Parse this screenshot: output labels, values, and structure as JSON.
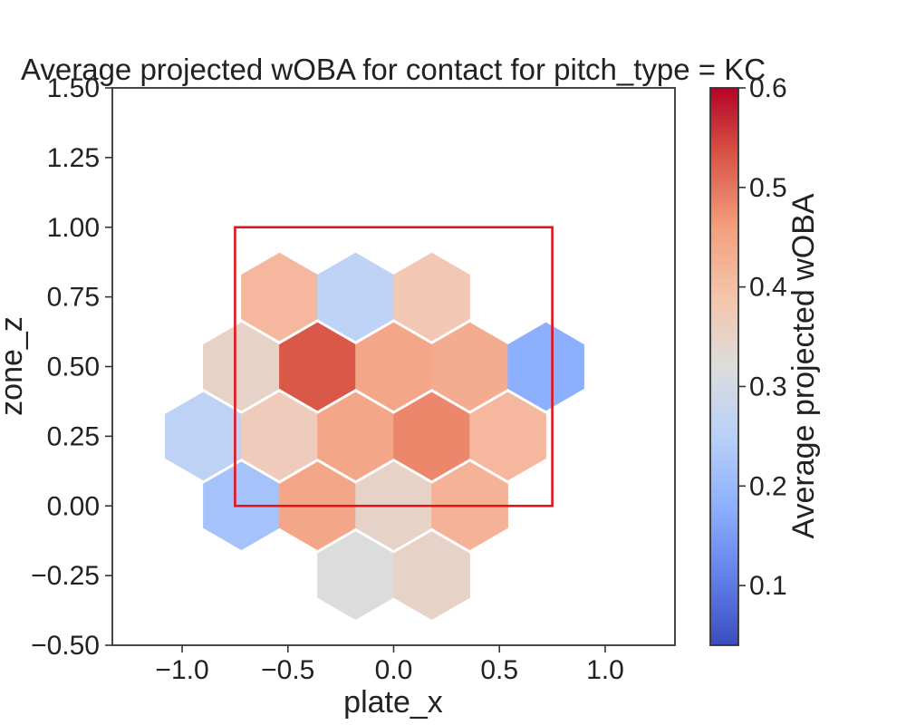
{
  "chart_data": {
    "type": "heatmap",
    "subtype": "hexbin",
    "title": "Average projected wOBA for contact for pitch_type = KC",
    "xlabel": "plate_x",
    "ylabel": "zone_z",
    "xlim": [
      -1.33,
      1.33
    ],
    "ylim": [
      -0.5,
      1.5
    ],
    "x_ticks": [
      -1.0,
      -0.5,
      0.0,
      0.5,
      1.0
    ],
    "x_tick_labels": [
      "−1.0",
      "−0.5",
      "0.0",
      "0.5",
      "1.0"
    ],
    "y_ticks": [
      -0.5,
      -0.25,
      0.0,
      0.25,
      0.5,
      0.75,
      1.0,
      1.25,
      1.5
    ],
    "y_tick_labels": [
      "−0.50",
      "−0.25",
      "0.00",
      "0.25",
      "0.50",
      "0.75",
      "1.00",
      "1.25",
      "1.50"
    ],
    "grid": false,
    "hex_width": 0.36,
    "colormap": "coolwarm",
    "colorbar": {
      "label": "Average projected wOBA",
      "min": 0.04,
      "max": 0.6,
      "ticks": [
        0.1,
        0.2,
        0.3,
        0.4,
        0.5,
        0.6
      ],
      "tick_labels": [
        "0.1",
        "0.2",
        "0.3",
        "0.4",
        "0.5",
        "0.6"
      ]
    },
    "strike_zone": {
      "x": [
        -0.75,
        0.75
      ],
      "z": [
        0.0,
        1.0
      ],
      "color": "#e3141b"
    },
    "hexes": [
      {
        "x": -0.54,
        "y": 0.75,
        "value": 0.41
      },
      {
        "x": -0.18,
        "y": 0.75,
        "value": 0.26
      },
      {
        "x": 0.18,
        "y": 0.75,
        "value": 0.38
      },
      {
        "x": -0.72,
        "y": 0.5,
        "value": 0.35
      },
      {
        "x": -0.36,
        "y": 0.5,
        "value": 0.53
      },
      {
        "x": 0.0,
        "y": 0.5,
        "value": 0.44
      },
      {
        "x": 0.36,
        "y": 0.5,
        "value": 0.43
      },
      {
        "x": 0.72,
        "y": 0.5,
        "value": 0.18
      },
      {
        "x": -0.9,
        "y": 0.25,
        "value": 0.26
      },
      {
        "x": -0.54,
        "y": 0.25,
        "value": 0.37
      },
      {
        "x": -0.18,
        "y": 0.25,
        "value": 0.44
      },
      {
        "x": 0.18,
        "y": 0.25,
        "value": 0.48
      },
      {
        "x": 0.54,
        "y": 0.25,
        "value": 0.41
      },
      {
        "x": -0.72,
        "y": 0.0,
        "value": 0.22
      },
      {
        "x": -0.36,
        "y": 0.0,
        "value": 0.44
      },
      {
        "x": 0.0,
        "y": 0.0,
        "value": 0.35
      },
      {
        "x": 0.36,
        "y": 0.0,
        "value": 0.42
      },
      {
        "x": -0.18,
        "y": -0.25,
        "value": 0.32
      },
      {
        "x": 0.18,
        "y": -0.25,
        "value": 0.35
      }
    ]
  }
}
